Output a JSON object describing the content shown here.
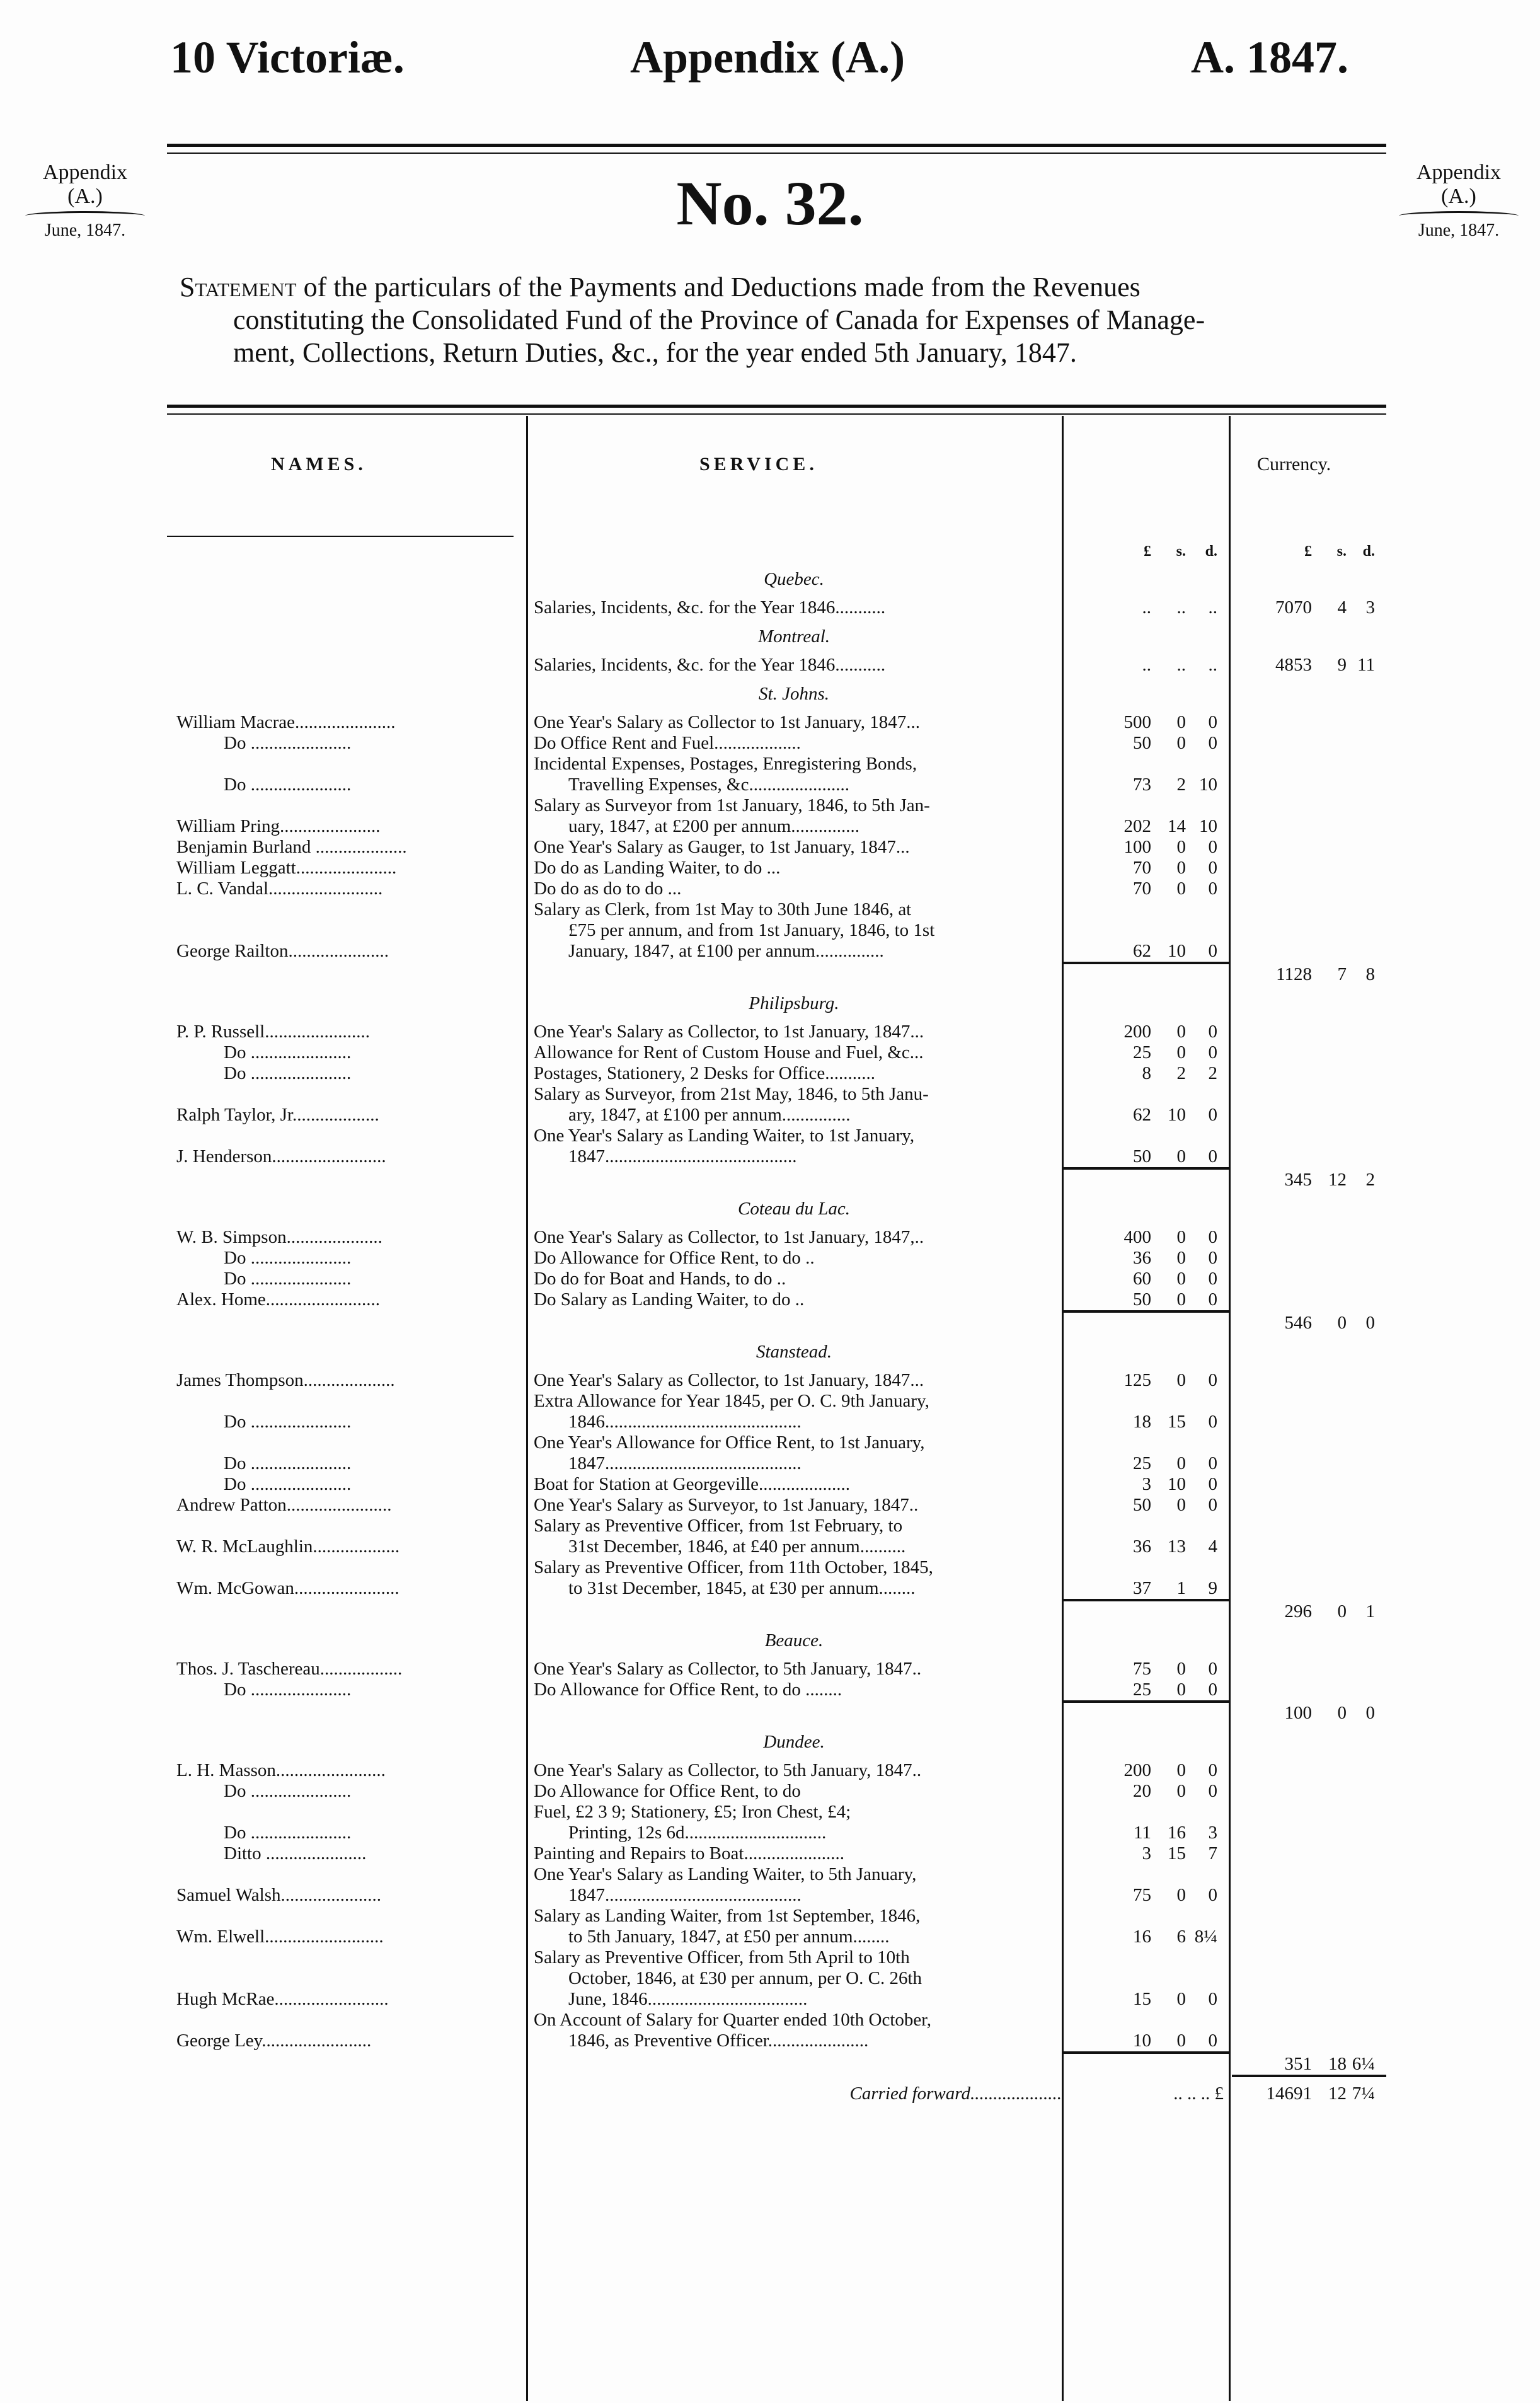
{
  "header": {
    "left": "10 Victoriæ.",
    "center": "Appendix (A.)",
    "right": "A. 1847."
  },
  "margin_note": {
    "line1": "Appendix",
    "line2": "(A.)",
    "date": "June, 1847."
  },
  "number": "No. 32.",
  "statement": {
    "lead": "Statement",
    "rest1": " of the particulars of the Payments and Deductions made from the Revenues",
    "rest2": "constituting the Consolidated Fund of the Province of Canada for Expenses of Manage-",
    "rest3": "ment, Collections, Return Duties, &c., for the year ended 5th January, 1847."
  },
  "columns": {
    "names": "NAMES.",
    "service": "SERVICE.",
    "currency": "Currency.",
    "units": [
      "£",
      "s.",
      "d."
    ]
  },
  "sections": [
    {
      "title": "Quebec.",
      "entries": [
        {
          "name": "",
          "service": [
            "Salaries, Incidents, &c. for the Year 1846..........."
          ],
          "amount": [
            "..",
            "..",
            ".."
          ],
          "total": [
            "7070",
            "4",
            "3"
          ]
        }
      ]
    },
    {
      "title": "Montreal.",
      "entries": [
        {
          "name": "",
          "service": [
            "Salaries, Incidents, &c. for the Year 1846..........."
          ],
          "amount": [
            "..",
            "..",
            ".."
          ],
          "total": [
            "4853",
            "9",
            "11"
          ]
        }
      ]
    },
    {
      "title": "St. Johns.",
      "subtotal": [
        "1128",
        "7",
        "8"
      ],
      "entries": [
        {
          "name": "William Macrae......................",
          "service": [
            "One Year's Salary as Collector to 1st January, 1847..."
          ],
          "amount": [
            "500",
            "0",
            "0"
          ]
        },
        {
          "name": "Do ......................",
          "do": true,
          "service": [
            "Do Office Rent and Fuel..................."
          ],
          "amount": [
            "50",
            "0",
            "0"
          ]
        },
        {
          "name": "Do ......................",
          "do": true,
          "service": [
            "Incidental Expenses, Postages, Enregistering Bonds,",
            "Travelling Expenses, &c......................"
          ],
          "amount": [
            "73",
            "2",
            "10"
          ]
        },
        {
          "name": "William Pring......................",
          "service": [
            "Salary as Surveyor from 1st January, 1846, to 5th Jan-",
            "uary, 1847, at £200 per annum..............."
          ],
          "amount": [
            "202",
            "14",
            "10"
          ]
        },
        {
          "name": "Benjamin Burland ....................",
          "service": [
            "One Year's Salary as Gauger, to 1st January, 1847..."
          ],
          "amount": [
            "100",
            "0",
            "0"
          ]
        },
        {
          "name": "William Leggatt......................",
          "service": [
            "Do do as Landing Waiter, to do ..."
          ],
          "amount": [
            "70",
            "0",
            "0"
          ]
        },
        {
          "name": "L. C. Vandal.........................",
          "service": [
            "Do do as do to do ..."
          ],
          "amount": [
            "70",
            "0",
            "0"
          ]
        },
        {
          "name": "George Railton......................",
          "service": [
            "Salary as Clerk, from 1st May to 30th June 1846, at",
            "£75 per annum, and from 1st January, 1846, to 1st",
            "January, 1847, at £100 per annum..............."
          ],
          "amount": [
            "62",
            "10",
            "0"
          ]
        }
      ]
    },
    {
      "title": "Philipsburg.",
      "subtotal": [
        "345",
        "12",
        "2"
      ],
      "entries": [
        {
          "name": "P. P. Russell.......................",
          "service": [
            "One Year's Salary as Collector, to 1st January, 1847..."
          ],
          "amount": [
            "200",
            "0",
            "0"
          ]
        },
        {
          "name": "Do ......................",
          "do": true,
          "service": [
            "Allowance for Rent of Custom House and Fuel, &c..."
          ],
          "amount": [
            "25",
            "0",
            "0"
          ]
        },
        {
          "name": "Do ......................",
          "do": true,
          "service": [
            "Postages, Stationery, 2 Desks for Office..........."
          ],
          "amount": [
            "8",
            "2",
            "2"
          ]
        },
        {
          "name": "Ralph Taylor, Jr...................",
          "service": [
            "Salary as Surveyor, from 21st May, 1846, to 5th Janu-",
            "ary, 1847, at £100 per annum..............."
          ],
          "amount": [
            "62",
            "10",
            "0"
          ]
        },
        {
          "name": "J. Henderson.........................",
          "service": [
            "One Year's Salary as Landing Waiter, to 1st January,",
            "1847.........................................."
          ],
          "amount": [
            "50",
            "0",
            "0"
          ]
        }
      ]
    },
    {
      "title": "Coteau du Lac.",
      "subtotal": [
        "546",
        "0",
        "0"
      ],
      "entries": [
        {
          "name": "W. B. Simpson.....................",
          "service": [
            "One Year's Salary as Collector, to 1st January, 1847,.."
          ],
          "amount": [
            "400",
            "0",
            "0"
          ]
        },
        {
          "name": "Do ......................",
          "do": true,
          "service": [
            "Do Allowance for Office Rent, to do .."
          ],
          "amount": [
            "36",
            "0",
            "0"
          ]
        },
        {
          "name": "Do ......................",
          "do": true,
          "service": [
            "Do do for Boat and Hands, to do .."
          ],
          "amount": [
            "60",
            "0",
            "0"
          ]
        },
        {
          "name": "Alex. Home.........................",
          "service": [
            "Do Salary as Landing Waiter, to do .."
          ],
          "amount": [
            "50",
            "0",
            "0"
          ]
        }
      ]
    },
    {
      "title": "Stanstead.",
      "subtotal": [
        "296",
        "0",
        "1"
      ],
      "entries": [
        {
          "name": "James Thompson....................",
          "service": [
            "One Year's Salary as Collector, to 1st January, 1847..."
          ],
          "amount": [
            "125",
            "0",
            "0"
          ]
        },
        {
          "name": "Do ......................",
          "do": true,
          "service": [
            "Extra Allowance for Year 1845, per O. C. 9th January,",
            "1846..........................................."
          ],
          "amount": [
            "18",
            "15",
            "0"
          ]
        },
        {
          "name": "Do ......................",
          "do": true,
          "service": [
            "One Year's Allowance for Office Rent, to 1st January,",
            "1847..........................................."
          ],
          "amount": [
            "25",
            "0",
            "0"
          ]
        },
        {
          "name": "Do ......................",
          "do": true,
          "service": [
            "Boat for Station at Georgeville...................."
          ],
          "amount": [
            "3",
            "10",
            "0"
          ]
        },
        {
          "name": "Andrew Patton.......................",
          "service": [
            "One Year's Salary as Surveyor, to 1st January, 1847.."
          ],
          "amount": [
            "50",
            "0",
            "0"
          ]
        },
        {
          "name": "W. R. McLaughlin...................",
          "service": [
            "Salary as Preventive Officer, from 1st February, to",
            "31st December, 1846, at £40 per annum.........."
          ],
          "amount": [
            "36",
            "13",
            "4"
          ]
        },
        {
          "name": "Wm. McGowan.......................",
          "service": [
            "Salary as Preventive Officer, from 11th October, 1845,",
            "to 31st December, 1845, at £30 per annum........"
          ],
          "amount": [
            "37",
            "1",
            "9"
          ]
        }
      ]
    },
    {
      "title": "Beauce.",
      "subtotal": [
        "100",
        "0",
        "0"
      ],
      "entries": [
        {
          "name": "Thos. J. Taschereau..................",
          "service": [
            "One Year's Salary as Collector, to 5th January, 1847.."
          ],
          "amount": [
            "75",
            "0",
            "0"
          ]
        },
        {
          "name": "Do ......................",
          "do": true,
          "service": [
            "Do Allowance for Office Rent, to do ........"
          ],
          "amount": [
            "25",
            "0",
            "0"
          ]
        }
      ]
    },
    {
      "title": "Dundee.",
      "subtotal": [
        "351",
        "18",
        "6¼"
      ],
      "entries": [
        {
          "name": "L. H. Masson........................",
          "service": [
            "One Year's Salary as Collector, to 5th January, 1847.."
          ],
          "amount": [
            "200",
            "0",
            "0"
          ]
        },
        {
          "name": "Do ......................",
          "do": true,
          "service": [
            "Do Allowance for Office Rent, to do"
          ],
          "amount": [
            "20",
            "0",
            "0"
          ]
        },
        {
          "name": "Do ......................",
          "do": true,
          "service": [
            "Fuel, £2 3 9; Stationery, £5; Iron Chest, £4;",
            "Printing, 12s 6d..............................."
          ],
          "amount": [
            "11",
            "16",
            "3"
          ]
        },
        {
          "name": "Ditto ......................",
          "do": true,
          "service": [
            "Painting and Repairs to Boat......................"
          ],
          "amount": [
            "3",
            "15",
            "7"
          ]
        },
        {
          "name": "Samuel Walsh......................",
          "service": [
            "One Year's Salary as Landing Waiter, to 5th January,",
            "1847..........................................."
          ],
          "amount": [
            "75",
            "0",
            "0"
          ]
        },
        {
          "name": "Wm. Elwell..........................",
          "service": [
            "Salary as Landing Waiter, from 1st September, 1846,",
            "to 5th January, 1847, at £50 per annum........"
          ],
          "amount": [
            "16",
            "6",
            "8¼"
          ]
        },
        {
          "name": "Hugh McRae.........................",
          "service": [
            "Salary as Preventive Officer, from 5th April to 10th",
            "October, 1846, at £30 per annum, per O. C. 26th",
            "June, 1846..................................."
          ],
          "amount": [
            "15",
            "0",
            "0"
          ]
        },
        {
          "name": "George Ley........................",
          "service": [
            "On Account of Salary for Quarter ended 10th October,",
            "1846, as Preventive Officer......................"
          ],
          "amount": [
            "10",
            "0",
            "0"
          ]
        }
      ]
    }
  ],
  "carried_forward": {
    "label": "Carried forward....................",
    "amount": "..  ..  .. £",
    "total": [
      "14691",
      "12",
      "7¼"
    ]
  }
}
